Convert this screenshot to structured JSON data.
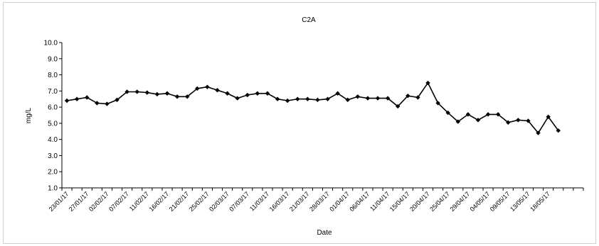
{
  "chart_data": {
    "type": "line",
    "title": "C2A",
    "xlabel": "Date",
    "ylabel": "mg/L",
    "ylim": [
      1.0,
      10.0
    ],
    "y_ticks": [
      "1.0",
      "2.0",
      "3.0",
      "4.0",
      "5.0",
      "6.0",
      "7.0",
      "8.0",
      "9.0",
      "10.0"
    ],
    "x_tick_labels": [
      "23/01/17",
      "27/01/17",
      "02/02/17",
      "07/02/17",
      "11/02/17",
      "16/02/17",
      "21/02/17",
      "25/02/17",
      "02/03/17",
      "07/03/17",
      "11/03/17",
      "16/03/17",
      "21/03/17",
      "28/03/17",
      "01/04/17",
      "06/04/17",
      "11/04/17",
      "15/04/17",
      "20/04/17",
      "25/04/17",
      "29/04/17",
      "04/05/17",
      "09/05/17",
      "13/05/17",
      "18/05/17"
    ],
    "grid": false,
    "legend": "none",
    "series": [
      {
        "values": [
          6.4,
          6.5,
          6.6,
          6.25,
          6.2,
          6.45,
          6.95,
          6.95,
          6.9,
          6.8,
          6.85,
          6.65,
          6.65,
          7.15,
          7.25,
          7.05,
          6.85,
          6.55,
          6.75,
          6.85,
          6.85,
          6.5,
          6.4,
          6.5,
          6.5,
          6.45,
          6.5,
          6.85,
          6.45,
          6.65,
          6.55,
          6.55,
          6.55,
          6.05,
          6.7,
          6.6,
          7.5,
          6.25,
          5.65,
          5.1,
          5.55,
          5.2,
          5.55,
          5.55,
          5.05,
          5.2,
          5.15,
          4.4,
          5.4,
          4.55
        ]
      }
    ],
    "color": "#000000"
  }
}
